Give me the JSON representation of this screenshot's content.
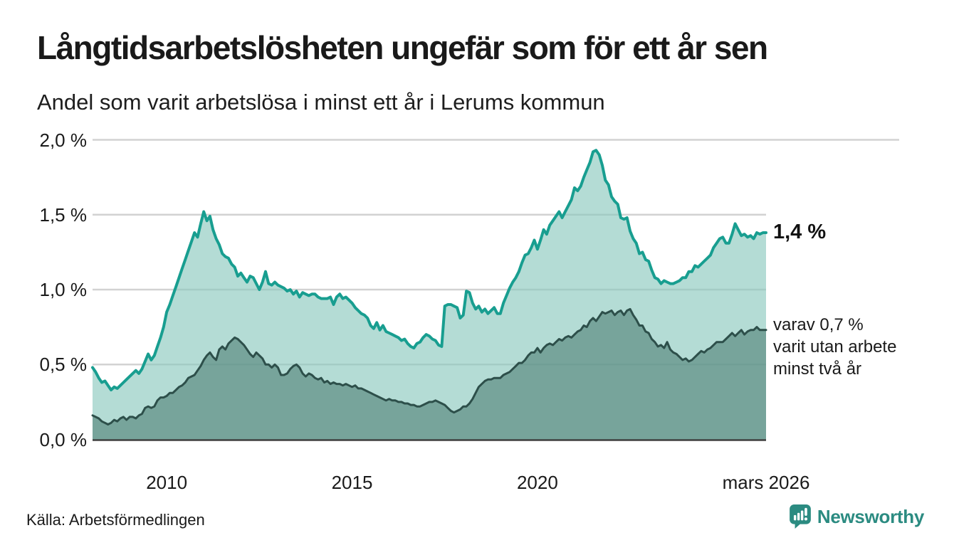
{
  "header": {
    "title": "Långtidsarbetslösheten ungefär som för ett år sen",
    "subtitle": "Andel som varit arbetslösa i minst ett år i Lerums kommun"
  },
  "chart_data": {
    "type": "area",
    "title": "Långtidsarbetslösheten ungefär som för ett år sen",
    "subtitle": "Andel som varit arbetslösa i minst ett år i Lerums kommun",
    "xlabel": "",
    "ylabel": "",
    "unit": "%",
    "ylim": [
      0,
      2.0
    ],
    "x_start": "2008-01",
    "x_end": "2026-03",
    "grid": "horizontal",
    "y_ticks": [
      {
        "label": "0,0 %",
        "value": 0.0
      },
      {
        "label": "0,5 %",
        "value": 0.5
      },
      {
        "label": "1,0 %",
        "value": 1.0
      },
      {
        "label": "1,5 %",
        "value": 1.5
      },
      {
        "label": "2,0 %",
        "value": 2.0
      }
    ],
    "x_ticks": [
      {
        "label": "2010",
        "month_index": 24
      },
      {
        "label": "2015",
        "month_index": 84
      },
      {
        "label": "2020",
        "month_index": 144
      },
      {
        "label": "mars 2026",
        "month_index": 218
      }
    ],
    "series": [
      {
        "name": "Andel arbetslösa minst ett år",
        "line_color": "#189e90",
        "fill_color": "rgba(140,202,191,0.65)",
        "line_width": 4,
        "values": [
          0.48,
          0.45,
          0.41,
          0.38,
          0.39,
          0.36,
          0.33,
          0.35,
          0.34,
          0.36,
          0.38,
          0.4,
          0.42,
          0.44,
          0.46,
          0.44,
          0.47,
          0.52,
          0.57,
          0.53,
          0.56,
          0.62,
          0.68,
          0.75,
          0.85,
          0.9,
          0.96,
          1.02,
          1.08,
          1.14,
          1.2,
          1.26,
          1.32,
          1.38,
          1.35,
          1.44,
          1.52,
          1.46,
          1.49,
          1.4,
          1.34,
          1.3,
          1.24,
          1.22,
          1.21,
          1.17,
          1.15,
          1.09,
          1.11,
          1.08,
          1.05,
          1.09,
          1.08,
          1.04,
          1.0,
          1.05,
          1.12,
          1.04,
          1.03,
          1.05,
          1.03,
          1.02,
          1.01,
          0.99,
          1.0,
          0.97,
          0.99,
          0.95,
          0.98,
          0.97,
          0.96,
          0.97,
          0.97,
          0.95,
          0.94,
          0.94,
          0.94,
          0.95,
          0.9,
          0.95,
          0.97,
          0.94,
          0.95,
          0.93,
          0.91,
          0.88,
          0.86,
          0.84,
          0.83,
          0.81,
          0.76,
          0.74,
          0.78,
          0.73,
          0.76,
          0.72,
          0.71,
          0.7,
          0.69,
          0.68,
          0.66,
          0.67,
          0.64,
          0.62,
          0.61,
          0.64,
          0.65,
          0.68,
          0.7,
          0.69,
          0.67,
          0.66,
          0.63,
          0.62,
          0.89,
          0.9,
          0.9,
          0.89,
          0.88,
          0.81,
          0.83,
          0.99,
          0.98,
          0.91,
          0.87,
          0.89,
          0.85,
          0.87,
          0.84,
          0.86,
          0.88,
          0.84,
          0.84,
          0.91,
          0.96,
          1.01,
          1.05,
          1.08,
          1.12,
          1.18,
          1.23,
          1.24,
          1.28,
          1.33,
          1.27,
          1.33,
          1.4,
          1.37,
          1.43,
          1.46,
          1.49,
          1.52,
          1.48,
          1.52,
          1.56,
          1.6,
          1.68,
          1.66,
          1.69,
          1.75,
          1.8,
          1.85,
          1.92,
          1.93,
          1.9,
          1.83,
          1.73,
          1.7,
          1.62,
          1.59,
          1.57,
          1.48,
          1.47,
          1.48,
          1.39,
          1.34,
          1.31,
          1.24,
          1.25,
          1.2,
          1.19,
          1.13,
          1.08,
          1.07,
          1.04,
          1.06,
          1.05,
          1.04,
          1.04,
          1.05,
          1.06,
          1.08,
          1.08,
          1.12,
          1.12,
          1.16,
          1.15,
          1.17,
          1.19,
          1.21,
          1.23,
          1.28,
          1.31,
          1.34,
          1.35,
          1.31,
          1.31,
          1.37,
          1.44,
          1.4,
          1.36,
          1.37,
          1.35,
          1.36,
          1.34,
          1.38,
          1.37,
          1.38,
          1.38
        ]
      },
      {
        "name": "varav utan arbete minst två år",
        "line_color": "#2d4f4a",
        "fill_color": "rgba(79,127,117,0.60)",
        "line_width": 3,
        "values": [
          0.16,
          0.15,
          0.14,
          0.12,
          0.11,
          0.1,
          0.11,
          0.13,
          0.12,
          0.14,
          0.15,
          0.13,
          0.15,
          0.15,
          0.14,
          0.16,
          0.17,
          0.21,
          0.22,
          0.21,
          0.22,
          0.26,
          0.28,
          0.28,
          0.29,
          0.31,
          0.31,
          0.33,
          0.35,
          0.36,
          0.38,
          0.41,
          0.42,
          0.43,
          0.46,
          0.49,
          0.53,
          0.56,
          0.58,
          0.55,
          0.53,
          0.6,
          0.62,
          0.6,
          0.64,
          0.66,
          0.68,
          0.67,
          0.65,
          0.63,
          0.6,
          0.57,
          0.55,
          0.58,
          0.56,
          0.54,
          0.5,
          0.5,
          0.48,
          0.5,
          0.48,
          0.43,
          0.43,
          0.44,
          0.47,
          0.49,
          0.5,
          0.48,
          0.44,
          0.42,
          0.44,
          0.43,
          0.41,
          0.4,
          0.41,
          0.38,
          0.39,
          0.37,
          0.38,
          0.37,
          0.37,
          0.36,
          0.37,
          0.36,
          0.35,
          0.36,
          0.34,
          0.34,
          0.33,
          0.32,
          0.31,
          0.3,
          0.29,
          0.28,
          0.27,
          0.26,
          0.27,
          0.26,
          0.26,
          0.25,
          0.25,
          0.24,
          0.24,
          0.23,
          0.23,
          0.22,
          0.22,
          0.23,
          0.24,
          0.25,
          0.25,
          0.26,
          0.25,
          0.24,
          0.23,
          0.21,
          0.19,
          0.18,
          0.19,
          0.2,
          0.22,
          0.22,
          0.24,
          0.27,
          0.31,
          0.35,
          0.37,
          0.39,
          0.4,
          0.4,
          0.41,
          0.41,
          0.41,
          0.43,
          0.44,
          0.45,
          0.47,
          0.49,
          0.51,
          0.51,
          0.53,
          0.56,
          0.58,
          0.58,
          0.61,
          0.58,
          0.61,
          0.63,
          0.64,
          0.63,
          0.65,
          0.67,
          0.66,
          0.68,
          0.69,
          0.68,
          0.7,
          0.72,
          0.73,
          0.76,
          0.75,
          0.79,
          0.81,
          0.79,
          0.82,
          0.85,
          0.84,
          0.85,
          0.86,
          0.83,
          0.85,
          0.86,
          0.83,
          0.86,
          0.87,
          0.83,
          0.8,
          0.76,
          0.76,
          0.72,
          0.71,
          0.67,
          0.65,
          0.62,
          0.63,
          0.61,
          0.65,
          0.6,
          0.58,
          0.57,
          0.55,
          0.53,
          0.54,
          0.52,
          0.53,
          0.55,
          0.57,
          0.59,
          0.58,
          0.6,
          0.61,
          0.63,
          0.65,
          0.65,
          0.65,
          0.67,
          0.69,
          0.71,
          0.69,
          0.71,
          0.73,
          0.7,
          0.72,
          0.73,
          0.73,
          0.75,
          0.73,
          0.73,
          0.73
        ]
      }
    ],
    "colors": {
      "gridline": "#d2d2d2",
      "baseline": "#3f3f3f",
      "background": "#ffffff"
    }
  },
  "annotations": {
    "latest_value": "1,4 %",
    "secondary": {
      "lines": [
        "varav 0,7 %",
        "varit utan arbete",
        "minst två år"
      ]
    }
  },
  "footer": {
    "source": "Källa: Arbetsförmedlingen",
    "logo_text": "Newsworthy",
    "logo_color": "#2b8b81"
  }
}
